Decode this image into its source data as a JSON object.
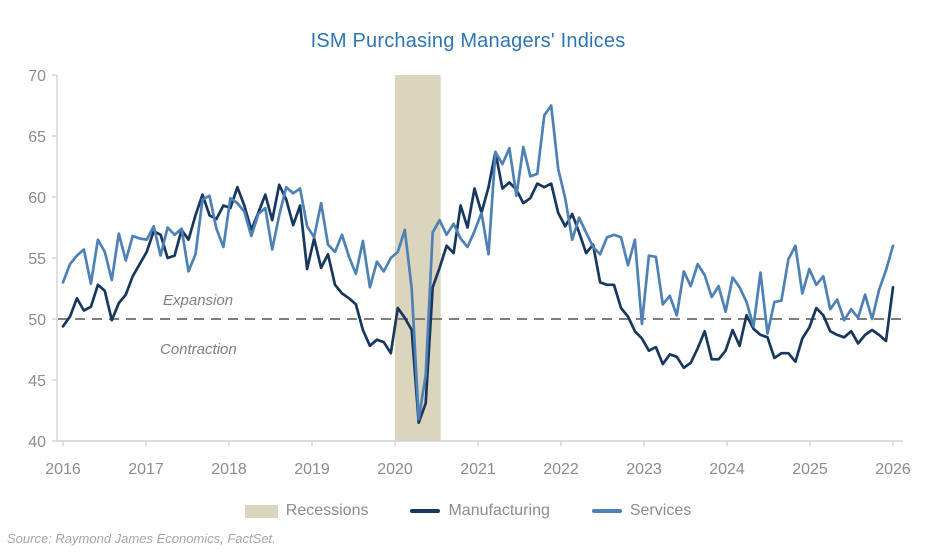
{
  "title": "ISM Purchasing Managers' Indices",
  "annotations": {
    "above_line": "Expansion",
    "below_line": "Contraction"
  },
  "source": "Source: Raymond James Economics, FactSet.",
  "legend": [
    {
      "label": "Recessions",
      "type": "band",
      "color": "#DBD5BE"
    },
    {
      "label": "Manufacturing",
      "type": "line",
      "color": "#17375E"
    },
    {
      "label": "Services",
      "type": "line",
      "color": "#4E81B5"
    }
  ],
  "colors": {
    "title": "#2E75B6",
    "manufacturing": "#17375E",
    "services": "#4E81B5",
    "recession_band": "#DBD5BE",
    "reference_line": "#7F7F7F",
    "axis": "#D2D2D2",
    "tick_label": "#8C8C8C",
    "annotation": "#7F7F7F",
    "legend_text": "#8C8C8C",
    "source_text": "#A6A6A6"
  },
  "chart_data": {
    "type": "line",
    "title": "ISM Purchasing Managers' Indices",
    "xlabel": "",
    "ylabel": "",
    "x_ticks": [
      2016,
      2017,
      2018,
      2019,
      2020,
      2021,
      2022,
      2023,
      2024,
      2025,
      2026
    ],
    "y_ticks": [
      70,
      65,
      60,
      55,
      50,
      45,
      40
    ],
    "ylim": [
      40,
      70
    ],
    "grid": false,
    "legend_position": "bottom",
    "reference_line": 50,
    "x_start": "2016-01",
    "x_end": "2025-12",
    "x_frequency": "monthly",
    "recession_band": {
      "label": "Recessions",
      "start_year": 2020.0,
      "end_year": 2020.55
    },
    "series": [
      {
        "name": "Manufacturing",
        "color": "#17375E",
        "monthly_values": [
          49.4,
          50.2,
          51.7,
          50.7,
          51.0,
          52.8,
          52.3,
          49.9,
          51.3,
          52.0,
          53.5,
          54.5,
          55.5,
          57.2,
          56.9,
          55.0,
          55.2,
          57.3,
          56.5,
          58.5,
          60.2,
          58.5,
          58.2,
          59.3,
          59.1,
          60.8,
          59.3,
          57.3,
          58.7,
          60.2,
          58.1,
          61.0,
          59.8,
          57.7,
          59.3,
          54.1,
          56.6,
          54.2,
          55.3,
          52.8,
          52.1,
          51.7,
          51.2,
          49.1,
          47.8,
          48.3,
          48.1,
          47.2,
          50.9,
          50.1,
          49.1,
          41.5,
          43.1,
          52.6,
          54.2,
          56.0,
          55.4,
          59.3,
          57.5,
          60.7,
          58.7,
          60.8,
          63.7,
          60.7,
          61.2,
          60.6,
          59.5,
          59.9,
          61.1,
          60.8,
          61.1,
          58.7,
          57.6,
          58.6,
          57.1,
          55.4,
          56.1,
          53.0,
          52.8,
          52.8,
          50.9,
          50.2,
          49.0,
          48.4,
          47.4,
          47.7,
          46.3,
          47.1,
          46.9,
          46.0,
          46.4,
          47.6,
          49.0,
          46.7,
          46.7,
          47.4,
          49.1,
          47.8,
          50.3,
          49.2,
          48.7,
          48.5,
          46.8,
          47.2,
          47.2,
          46.5,
          48.4,
          49.3,
          50.9,
          50.3,
          49.0,
          48.7,
          48.5,
          49.0,
          48.0,
          48.7,
          49.1,
          48.7,
          48.2,
          52.6
        ]
      },
      {
        "name": "Services",
        "color": "#4E81B5",
        "monthly_values": [
          53.0,
          54.5,
          55.2,
          55.7,
          52.9,
          56.5,
          55.5,
          53.2,
          57.0,
          54.8,
          56.8,
          56.6,
          56.5,
          57.6,
          55.2,
          57.5,
          56.9,
          57.4,
          53.9,
          55.3,
          59.8,
          60.1,
          57.4,
          55.9,
          59.9,
          59.5,
          58.8,
          56.8,
          58.6,
          59.1,
          55.7,
          58.5,
          60.8,
          60.3,
          60.7,
          57.6,
          56.7,
          59.5,
          56.1,
          55.5,
          56.9,
          55.1,
          53.7,
          56.4,
          52.6,
          54.7,
          53.9,
          55.0,
          55.5,
          57.3,
          52.5,
          41.8,
          45.4,
          57.1,
          58.1,
          56.9,
          57.8,
          56.6,
          55.9,
          57.2,
          58.7,
          55.3,
          63.7,
          62.7,
          64.0,
          60.1,
          64.1,
          61.7,
          61.9,
          66.7,
          67.5,
          62.3,
          59.9,
          56.5,
          58.3,
          57.1,
          55.9,
          55.3,
          56.7,
          56.9,
          56.7,
          54.4,
          56.5,
          49.6,
          55.2,
          55.1,
          51.2,
          51.9,
          50.3,
          53.9,
          52.7,
          54.5,
          53.6,
          51.8,
          52.7,
          50.6,
          53.4,
          52.6,
          51.4,
          49.4,
          53.8,
          48.8,
          51.4,
          51.5,
          54.9,
          56.0,
          52.1,
          54.1,
          52.8,
          53.5,
          50.8,
          51.6,
          49.9,
          50.8,
          50.1,
          52.0,
          50.0,
          52.4,
          54.0,
          56.0
        ]
      }
    ]
  }
}
